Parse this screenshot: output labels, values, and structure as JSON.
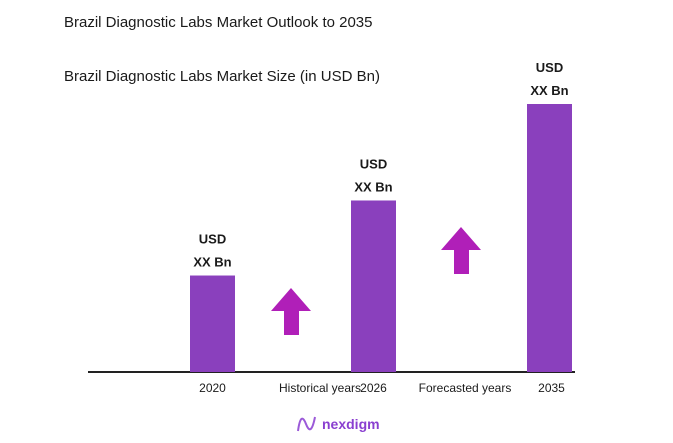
{
  "chart_data": {
    "type": "bar",
    "title": "Brazil Diagnostic Labs Market Outlook to 2035",
    "subtitle": "Brazil Diagnostic Labs Market Size (in USD Bn)",
    "categories": [
      "2020",
      "2026",
      "2035"
    ],
    "values": [
      36,
      64,
      100
    ],
    "data_labels": [
      [
        "USD",
        "XX Bn"
      ],
      [
        "USD",
        "XX Bn"
      ],
      [
        "USD",
        "XX Bn"
      ]
    ],
    "ylim": [
      0,
      100
    ],
    "period_labels": [
      "Historical years",
      "Forecasted years"
    ],
    "grid": false,
    "bar_color": "#8a40bd",
    "arrow_color": "#b01fb8",
    "arrow_icons": [
      "up-arrow-icon",
      "up-arrow-icon"
    ]
  },
  "brand": {
    "name": "nexdigm",
    "color": "#8a3fd0"
  }
}
